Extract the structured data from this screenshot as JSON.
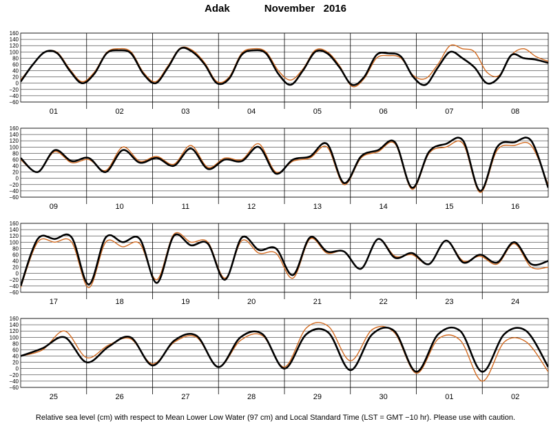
{
  "title": {
    "station": "Adak",
    "month_year": "November   2016"
  },
  "caption": "Relative sea level (cm) with respect to Mean Lower Low Water (97 cm) and Local Standard Time (LST = GMT −10 hr). Please use with caution.",
  "colors": {
    "predicted": "#000000",
    "observed": "#d2691e",
    "grid": "#000000"
  },
  "chart_data": [
    {
      "type": "line",
      "panel": 1,
      "y_ticks": [
        "160",
        "140",
        "120",
        "100",
        "80",
        "60",
        "40",
        "20",
        "0",
        "−20",
        "−40",
        "−60"
      ],
      "ylim": [
        -60,
        160
      ],
      "day_labels": [
        "01",
        "02",
        "03",
        "04",
        "05",
        "06",
        "07",
        "08"
      ],
      "series": [
        {
          "values": [
            5,
            60,
            100,
            95,
            40,
            0,
            30,
            95,
            105,
            95,
            30,
            0,
            50,
            110,
            100,
            60,
            0,
            15,
            90,
            105,
            95,
            30,
            -5,
            40,
            100,
            95,
            50,
            -5,
            20,
            90,
            95,
            85,
            20,
            -5,
            50,
            100,
            80,
            50,
            0,
            20,
            90,
            80,
            75,
            65
          ]
        },
        {
          "values": [
            10,
            60,
            100,
            98,
            45,
            5,
            35,
            98,
            110,
            100,
            35,
            5,
            55,
            112,
            105,
            65,
            5,
            20,
            95,
            110,
            100,
            40,
            10,
            45,
            105,
            100,
            55,
            -10,
            15,
            80,
            88,
            80,
            25,
            15,
            60,
            120,
            110,
            100,
            35,
            25,
            90,
            110,
            85,
            70
          ]
        }
      ]
    },
    {
      "type": "line",
      "panel": 2,
      "y_ticks": [
        "160",
        "140",
        "120",
        "100",
        "80",
        "60",
        "40",
        "20",
        "0",
        "−20",
        "−40",
        "−60"
      ],
      "ylim": [
        -60,
        160
      ],
      "day_labels": [
        "09",
        "10",
        "11",
        "12",
        "13",
        "14",
        "15",
        "16"
      ],
      "series": [
        {
          "values": [
            65,
            20,
            90,
            55,
            65,
            20,
            90,
            50,
            65,
            40,
            95,
            30,
            60,
            55,
            100,
            15,
            60,
            70,
            110,
            -15,
            70,
            90,
            115,
            -30,
            85,
            110,
            120,
            -40,
            100,
            115,
            120,
            -30
          ]
        },
        {
          "values": [
            60,
            20,
            85,
            50,
            60,
            25,
            100,
            55,
            70,
            45,
            105,
            35,
            65,
            60,
            110,
            20,
            55,
            65,
            100,
            -20,
            65,
            85,
            110,
            -35,
            80,
            100,
            110,
            -45,
            90,
            105,
            105,
            -20
          ]
        }
      ]
    },
    {
      "type": "line",
      "panel": 3,
      "y_ticks": [
        "160",
        "140",
        "120",
        "100",
        "80",
        "60",
        "40",
        "20",
        "0",
        "−20",
        "−40",
        "−60"
      ],
      "ylim": [
        -60,
        160
      ],
      "day_labels": [
        "17",
        "18",
        "19",
        "20",
        "21",
        "22",
        "23",
        "24"
      ],
      "series": [
        {
          "values": [
            -40,
            110,
            110,
            115,
            -35,
            115,
            100,
            110,
            -30,
            120,
            90,
            95,
            -20,
            115,
            75,
            80,
            -5,
            115,
            70,
            70,
            15,
            110,
            50,
            65,
            30,
            105,
            35,
            60,
            35,
            100,
            30,
            40
          ]
        },
        {
          "values": [
            -45,
            100,
            100,
            100,
            -45,
            100,
            85,
            95,
            -20,
            125,
            100,
            100,
            -15,
            105,
            65,
            65,
            -15,
            110,
            65,
            70,
            15,
            110,
            55,
            60,
            30,
            105,
            40,
            55,
            30,
            95,
            20,
            20
          ]
        }
      ]
    },
    {
      "type": "line",
      "panel": 4,
      "y_ticks": [
        "160",
        "140",
        "120",
        "100",
        "80",
        "60",
        "40",
        "20",
        "0",
        "−20",
        "−40",
        "−60"
      ],
      "ylim": [
        -60,
        160
      ],
      "day_labels": [
        "25",
        "26",
        "27",
        "28",
        "29",
        "30",
        "01",
        "02"
      ],
      "series": [
        {
          "values": [
            40,
            65,
            100,
            20,
            70,
            100,
            10,
            90,
            105,
            5,
            100,
            110,
            0,
            110,
            115,
            -5,
            110,
            120,
            -10,
            110,
            120,
            -10,
            110,
            120,
            5
          ]
        },
        {
          "values": [
            40,
            60,
            120,
            35,
            75,
            95,
            15,
            85,
            100,
            5,
            90,
            105,
            5,
            130,
            135,
            25,
            125,
            115,
            -15,
            95,
            90,
            -40,
            85,
            85,
            -10
          ]
        }
      ]
    }
  ]
}
